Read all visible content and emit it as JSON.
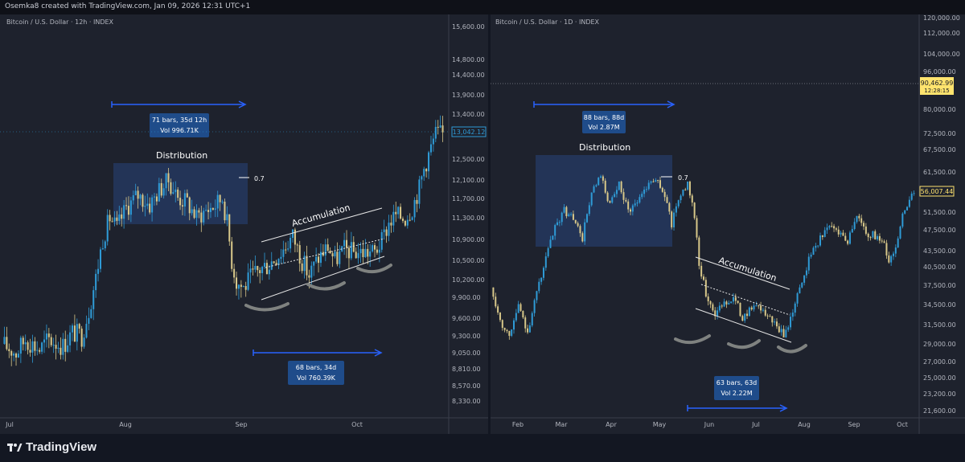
{
  "header": {
    "credit": "Osemka8 created with TradingView.com, Jan 09, 2026 12:31 UTC+1"
  },
  "footer": {
    "brand": "TradingView"
  },
  "colors": {
    "bg": "#1e222d",
    "up": "#2f9bd6",
    "down": "#d8c88a",
    "box": "#24375f",
    "arrow": "#2962ff",
    "label": "#1f4c8a",
    "price": "#ffe36e"
  },
  "chart_data": [
    {
      "type": "candlestick",
      "title": "Bitcoin / U.S. Dollar · 12h · INDEX",
      "x_ticks": [
        "Jul",
        "Aug",
        "Sep",
        "Oct"
      ],
      "y_ticks": [
        "15,600.00",
        "14,800.00",
        "14,400.00",
        "13,900.00",
        "13,400.00",
        "12,900.00",
        "12,500.00",
        "12,100.00",
        "11,700.00",
        "11,300.00",
        "10,900.00",
        "10,500.00",
        "10,200.00",
        "9,900.00",
        "9,600.00",
        "9,300.00",
        "9,050.00",
        "8,810.00",
        "8,570.00",
        "8,330.00"
      ],
      "last_price": "13,042.12",
      "price_path": [
        [
          0,
          9180
        ],
        [
          6,
          9050
        ],
        [
          10,
          9250
        ],
        [
          16,
          9100
        ],
        [
          20,
          9250
        ],
        [
          26,
          9150
        ],
        [
          30,
          9350
        ],
        [
          34,
          9300
        ],
        [
          37,
          9700
        ],
        [
          40,
          10200
        ],
        [
          43,
          10900
        ],
        [
          46,
          11300
        ],
        [
          49,
          11100
        ],
        [
          53,
          11500
        ],
        [
          58,
          11750
        ],
        [
          63,
          11550
        ],
        [
          67,
          11850
        ],
        [
          71,
          12050
        ],
        [
          75,
          11700
        ],
        [
          79,
          11600
        ],
        [
          83,
          11300
        ],
        [
          87,
          11450
        ],
        [
          91,
          11550
        ],
        [
          94,
          11700
        ],
        [
          96,
          11200
        ],
        [
          98,
          10500
        ],
        [
          100,
          10150
        ],
        [
          103,
          10050
        ],
        [
          106,
          10200
        ],
        [
          110,
          10350
        ],
        [
          114,
          10450
        ],
        [
          119,
          10650
        ],
        [
          124,
          10950
        ],
        [
          128,
          10500
        ],
        [
          131,
          10250
        ],
        [
          135,
          10550
        ],
        [
          139,
          10750
        ],
        [
          142,
          10500
        ],
        [
          146,
          10700
        ],
        [
          150,
          10650
        ],
        [
          155,
          10650
        ],
        [
          159,
          10650
        ],
        [
          162,
          10850
        ],
        [
          165,
          11200
        ],
        [
          168,
          11350
        ],
        [
          172,
          11300
        ],
        [
          175,
          11500
        ],
        [
          178,
          11900
        ],
        [
          180,
          12300
        ],
        [
          182,
          12600
        ],
        [
          185,
          13050
        ],
        [
          188,
          13050
        ]
      ],
      "candle_count": 188,
      "annotations": {
        "distribution": "Distribution",
        "accumulation": "Accumulation",
        "fib": "0.7",
        "top_measure": {
          "bars": "71 bars, 35d 12h",
          "vol": "Vol 996.71K"
        },
        "bottom_measure": {
          "bars": "68 bars, 34d",
          "vol": "Vol 760.39K"
        }
      }
    },
    {
      "type": "candlestick",
      "title": "Bitcoin / U.S. Dollar · 1D · INDEX",
      "x_ticks": [
        "Feb",
        "Mar",
        "Apr",
        "May",
        "Jun",
        "Jul",
        "Aug",
        "Sep",
        "Oct"
      ],
      "y_ticks": [
        "120,000.00",
        "112,000.00",
        "104,000.00",
        "96,000.00",
        "80,000.00",
        "72,500.00",
        "67,500.00",
        "61,500.00",
        "51,500.00",
        "47,500.00",
        "43,500.00",
        "40,500.00",
        "37,500.00",
        "34,500.00",
        "31,500.00",
        "29,000.00",
        "27,000.00",
        "25,000.00",
        "23,200.00",
        "21,600.00"
      ],
      "reference_price": "90,462.99",
      "reference_time": "12:28:15",
      "last_price": "56,007.44",
      "price_path": [
        [
          0,
          37000
        ],
        [
          4,
          32000
        ],
        [
          8,
          30000
        ],
        [
          12,
          34000
        ],
        [
          16,
          30500
        ],
        [
          20,
          36000
        ],
        [
          24,
          42000
        ],
        [
          28,
          48000
        ],
        [
          32,
          52000
        ],
        [
          36,
          50000
        ],
        [
          40,
          46000
        ],
        [
          44,
          56000
        ],
        [
          48,
          60000
        ],
        [
          52,
          53000
        ],
        [
          56,
          58000
        ],
        [
          60,
          52000
        ],
        [
          64,
          54000
        ],
        [
          68,
          58000
        ],
        [
          72,
          60000
        ],
        [
          76,
          55000
        ],
        [
          79,
          49000
        ],
        [
          81,
          53000
        ],
        [
          84,
          57000
        ],
        [
          86,
          58000
        ],
        [
          88,
          54000
        ],
        [
          91,
          41000
        ],
        [
          94,
          36000
        ],
        [
          98,
          33000
        ],
        [
          102,
          34500
        ],
        [
          106,
          35500
        ],
        [
          110,
          32500
        ],
        [
          114,
          34000
        ],
        [
          118,
          33500
        ],
        [
          122,
          32500
        ],
        [
          125,
          31000
        ],
        [
          128,
          30000
        ],
        [
          130,
          31500
        ],
        [
          133,
          34500
        ],
        [
          136,
          38000
        ],
        [
          140,
          43000
        ],
        [
          144,
          46000
        ],
        [
          148,
          48500
        ],
        [
          152,
          47500
        ],
        [
          156,
          45500
        ],
        [
          160,
          51000
        ],
        [
          164,
          47000
        ],
        [
          168,
          46500
        ],
        [
          172,
          44500
        ],
        [
          174,
          41500
        ],
        [
          176,
          43000
        ],
        [
          178,
          46000
        ],
        [
          180,
          51000
        ],
        [
          183,
          54000
        ],
        [
          185,
          56000
        ]
      ],
      "candle_count": 185,
      "annotations": {
        "distribution": "Distribution",
        "accumulation": "Accumulation",
        "fib": "0.7",
        "top_measure": {
          "bars": "88 bars, 88d",
          "vol": "Vol 2.87M"
        },
        "bottom_measure": {
          "bars": "63 bars, 63d",
          "vol": "Vol 2.22M"
        }
      }
    }
  ]
}
